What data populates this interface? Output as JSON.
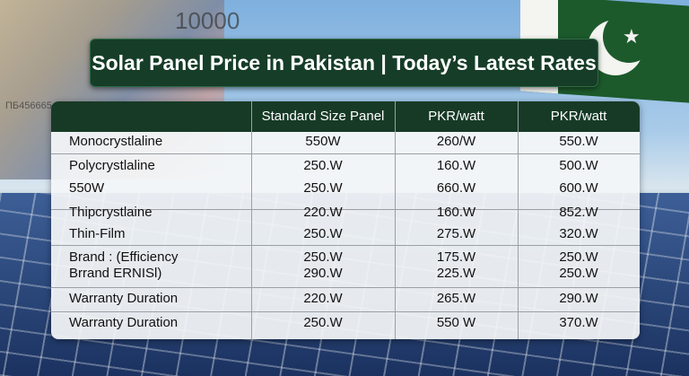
{
  "title": "Solar Panel Price in Pakistan | Today’s Latest Rates",
  "background": {
    "banknote_number": "10000",
    "banknote_serial": "ПБ456665"
  },
  "colors": {
    "banner": "#163d28",
    "header": "#173a26",
    "flag_green": "#1c5a2c"
  },
  "table": {
    "headers": [
      "",
      "Standard Size Panel",
      "PKR/watt",
      "PKR/watt"
    ],
    "rows": [
      [
        "Monocrystlaline",
        "550W",
        "260/W",
        "550.W"
      ],
      [
        "Polycrystlaline",
        "250.W",
        "160.W",
        "500.W"
      ],
      [
        "550W",
        "250.W",
        "660.W",
        "600.W"
      ],
      [
        "Thipcrystlaine",
        "220.W",
        "160.W",
        "852.W"
      ],
      [
        "Thin-Film",
        "250.W",
        "275.W",
        "320.W"
      ],
      [
        "Brand : (Efficiency",
        "250.W",
        "175.W",
        "250.W"
      ],
      [
        "Brrand ERNISl)",
        "290.W",
        "225.W",
        "250.W"
      ],
      [
        "Warranty Duration",
        "220.W",
        "265.W",
        "290.W"
      ],
      [
        "Warranty Duration",
        "250.W",
        "550 W",
        "370.W"
      ]
    ]
  }
}
